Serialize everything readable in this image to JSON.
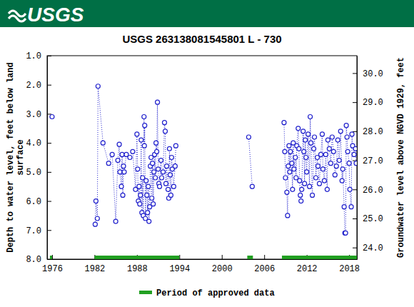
{
  "header": {
    "logo_text": "USGS"
  },
  "chart_data": {
    "type": "line",
    "title": "USGS 263138081545801 L  - 730",
    "ylabel": [
      "Depth to water level, feet below land",
      "surface"
    ],
    "y2label": "Groundwater level above NGVD 1929, feet",
    "xlim": [
      1975.3,
      2019.1
    ],
    "xticks": [
      1976,
      1982,
      1988,
      1994,
      2000,
      2006,
      2012,
      2018
    ],
    "ylim": [
      1.0,
      8.0
    ],
    "yticks": [
      {
        "value": 1,
        "label": "1.0"
      },
      {
        "value": 2,
        "label": "2.0"
      },
      {
        "value": 3,
        "label": "3.0"
      },
      {
        "value": 4,
        "label": "4.0"
      },
      {
        "value": 5,
        "label": "5.0"
      },
      {
        "value": 6,
        "label": "6.0"
      },
      {
        "value": 7,
        "label": "7.0"
      },
      {
        "value": 8,
        "label": "8.0"
      }
    ],
    "y2lim": [
      30.6,
      23.6
    ],
    "y2ticks": [
      {
        "value": 24,
        "label": "24.0"
      },
      {
        "value": 25,
        "label": "25.0"
      },
      {
        "value": 26,
        "label": "26.0"
      },
      {
        "value": 27,
        "label": "27.0"
      },
      {
        "value": 28,
        "label": "28.0"
      },
      {
        "value": 29,
        "label": "29.0"
      },
      {
        "value": 30,
        "label": "30.0"
      }
    ],
    "x": [
      1976.0,
      null,
      1982.1,
      1982.2,
      1982.4,
      1982.5,
      1983.2,
      1984.0,
      1984.5,
      1985.0,
      1985.3,
      1985.5,
      1985.6,
      1985.8,
      1985.9,
      1986.0,
      1986.1,
      1986.2,
      1986.5,
      1987.0,
      1987.4,
      1987.8,
      1988.0,
      1988.1,
      1988.2,
      1988.3,
      1988.4,
      1988.5,
      1988.6,
      1988.7,
      1988.8,
      1988.9,
      1989.0,
      1989.05,
      1989.1,
      1989.2,
      1989.3,
      1989.4,
      1989.5,
      1989.6,
      1989.7,
      1989.8,
      1989.9,
      1990.0,
      1990.1,
      1990.2,
      1990.3,
      1990.4,
      1990.5,
      1990.6,
      1990.7,
      1990.8,
      1990.9,
      1991.0,
      1991.1,
      1991.2,
      1991.4,
      1991.5,
      1991.7,
      1991.9,
      1992.0,
      1992.1,
      1992.2,
      1992.4,
      1992.5,
      1992.6,
      1992.7,
      1992.8,
      1992.9,
      1993.0,
      1993.2,
      1993.4,
      1993.5,
      null,
      2003.8,
      2004.3,
      null,
      2008.8,
      2008.9,
      2009.0,
      2009.2,
      2009.3,
      2009.4,
      2009.5,
      2009.6,
      2009.7,
      2009.9,
      2010.0,
      2010.1,
      2010.2,
      2010.4,
      2010.5,
      2010.6,
      2010.8,
      2010.9,
      2011.0,
      2011.1,
      2011.2,
      2011.3,
      2011.5,
      2011.6,
      2011.7,
      2011.8,
      2011.9,
      2012.0,
      2012.2,
      2012.4,
      2012.5,
      2012.6,
      2012.8,
      2013.0,
      2013.1,
      2013.3,
      2013.5,
      2013.6,
      2013.8,
      2014.0,
      2014.2,
      2014.3,
      2014.5,
      2014.7,
      2014.9,
      2015.0,
      2015.2,
      2015.4,
      2015.6,
      2015.8,
      2016.0,
      2016.2,
      2016.4,
      2016.6,
      2016.8,
      2017.0,
      2017.1,
      2017.3,
      2017.4,
      2017.5,
      2017.6,
      2017.7,
      2017.8,
      2018.0,
      2018.1,
      2018.3,
      2018.4,
      2018.5,
      2018.7,
      2018.9,
      2019.0
    ],
    "series": [
      {
        "color": "#2020cc",
        "marker": "open-circle",
        "line_style": "dotted",
        "values": [
          3.1,
          null,
          6.8,
          6.0,
          6.6,
          2.05,
          4.0,
          4.7,
          4.4,
          6.7,
          4.6,
          4.05,
          5.0,
          5.5,
          4.4,
          5.8,
          4.8,
          5.0,
          4.4,
          4.5,
          4.3,
          5.6,
          3.7,
          4.9,
          6.0,
          5.5,
          6.1,
          5.8,
          3.9,
          6.4,
          5.2,
          6.5,
          3.1,
          4.1,
          3.4,
          6.6,
          5.3,
          5.8,
          6.4,
          5.5,
          6.7,
          6.2,
          4.8,
          4.5,
          5.9,
          4.7,
          6.1,
          5.0,
          4.4,
          5.2,
          4.0,
          4.3,
          2.6,
          4.9,
          5.4,
          5.5,
          4.6,
          5.2,
          5.0,
          3.3,
          3.6,
          5.4,
          4.8,
          5.6,
          5.9,
          4.2,
          5.1,
          5.8,
          4.5,
          4.9,
          5.5,
          4.8,
          4.1,
          null,
          3.8,
          5.5,
          null,
          3.3,
          4.3,
          5.2,
          5.7,
          6.5,
          4.8,
          4.1,
          5.0,
          4.3,
          4.7,
          5.6,
          4.0,
          4.9,
          4.5,
          5.2,
          4.1,
          3.5,
          4.2,
          5.3,
          5.8,
          6.0,
          5.6,
          3.6,
          4.3,
          5.4,
          3.9,
          4.5,
          5.0,
          3.7,
          5.5,
          3.1,
          4.0,
          5.8,
          4.2,
          3.8,
          5.2,
          4.5,
          4.8,
          5.4,
          4.4,
          3.7,
          4.9,
          5.3,
          4.4,
          5.6,
          3.9,
          4.2,
          4.7,
          3.8,
          4.3,
          5.1,
          4.8,
          3.9,
          4.6,
          3.6,
          5.3,
          4.9,
          6.2,
          7.1,
          7.1,
          3.4,
          3.8,
          4.3,
          4.7,
          5.6,
          6.2,
          3.7,
          4.1,
          4.4,
          4.2,
          4.7
        ]
      }
    ],
    "approved": {
      "name": "Period of approved data",
      "color": "#22a022",
      "periods": [
        [
          1975.7,
          1976.0
        ],
        [
          1982.0,
          1994.0
        ],
        [
          2003.6,
          2004.4
        ],
        [
          2008.5,
          2019.1
        ]
      ]
    }
  }
}
